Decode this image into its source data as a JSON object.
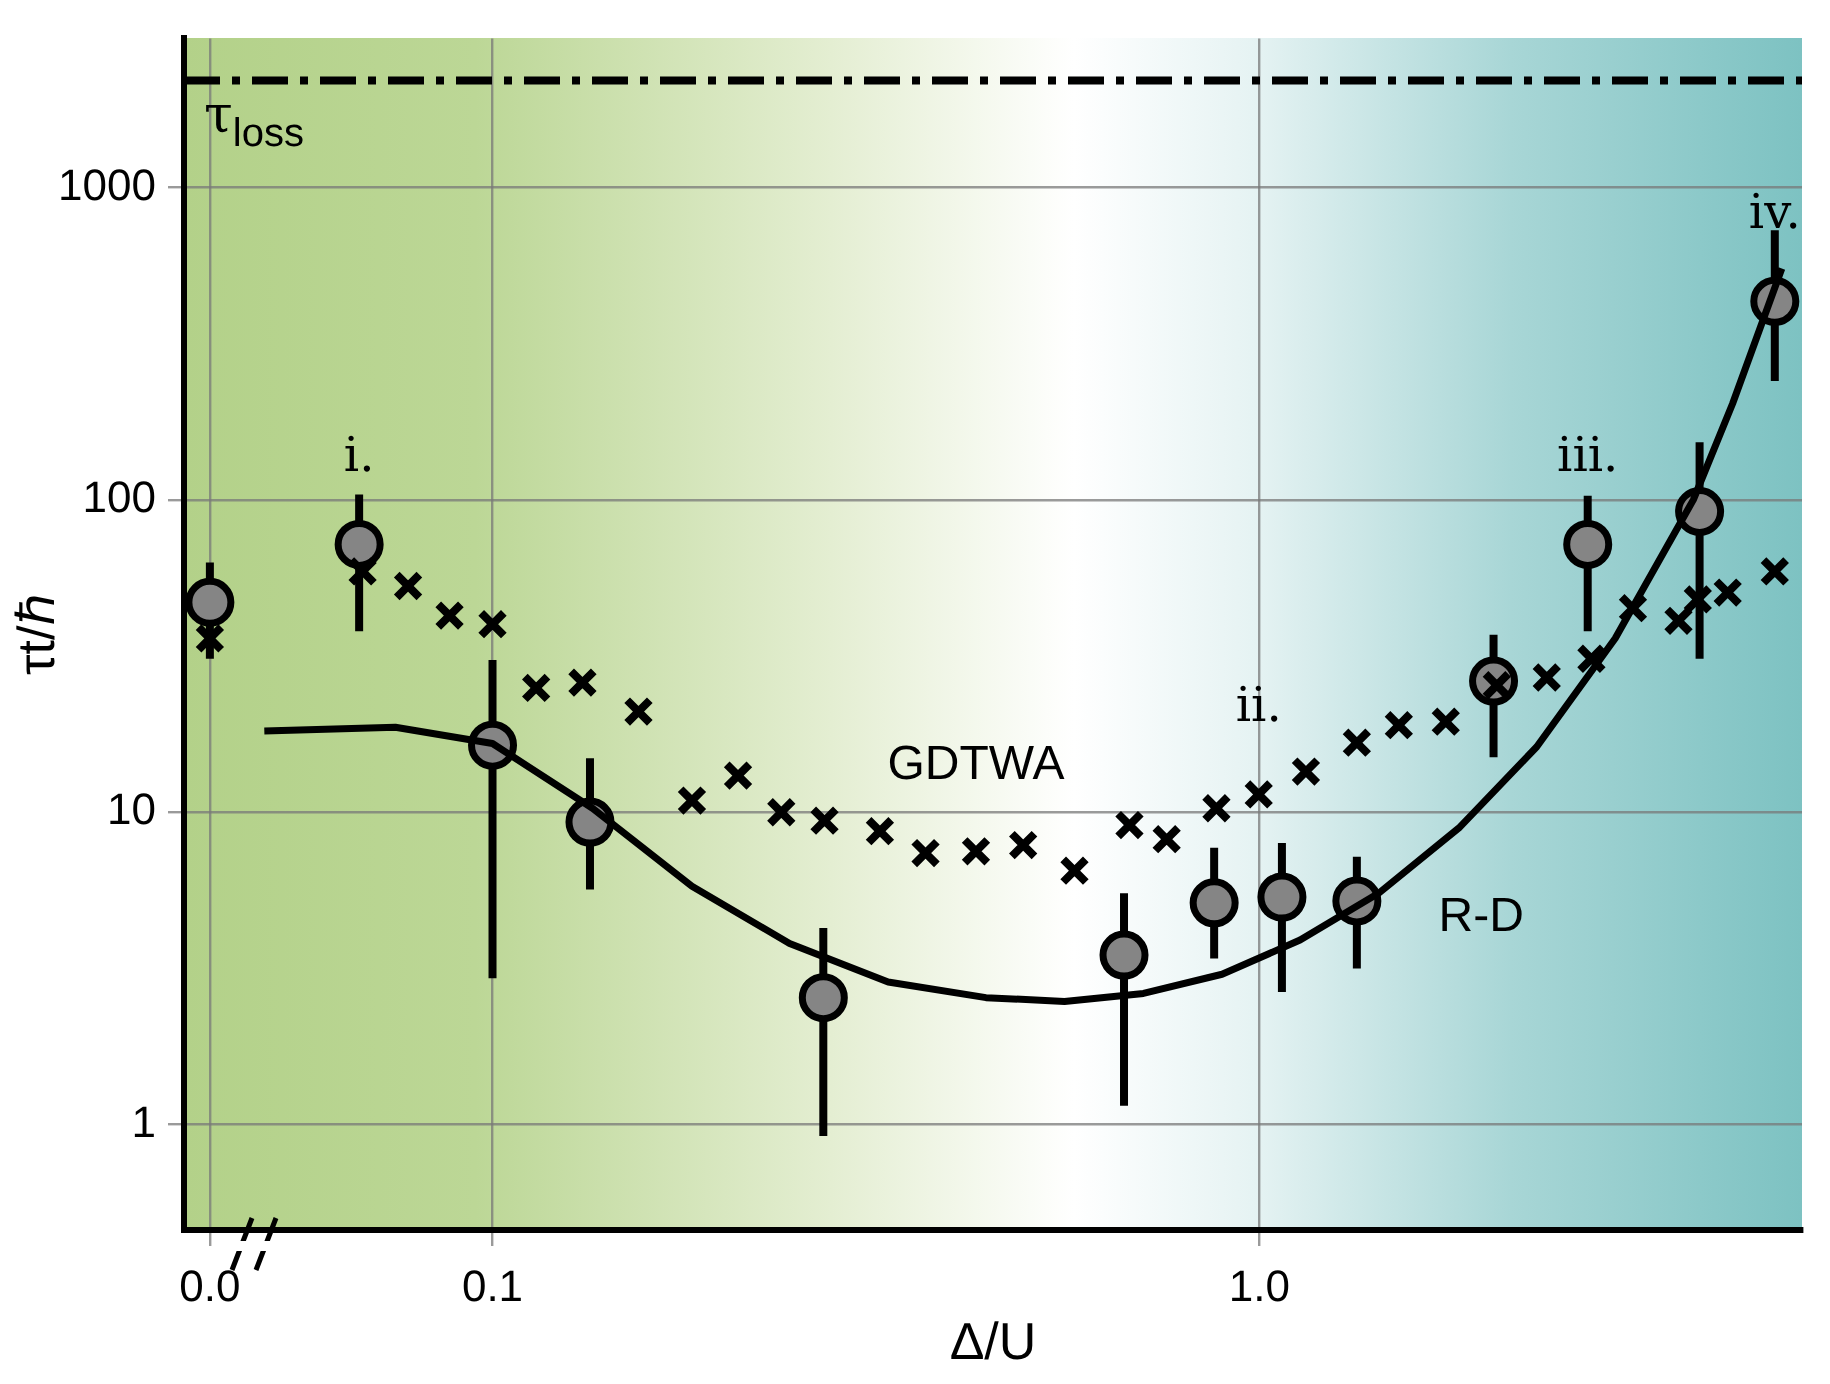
{
  "chart_data": {
    "type": "scatter",
    "xlabel": "Δ/U",
    "ylabel": "τt/ℏ",
    "log": "xy",
    "grid": true,
    "xlim": [
      0.0396,
      5.1
    ],
    "ylim": [
      0.46,
      3000
    ],
    "xticks": [
      {
        "value": 0.0428,
        "label": "0.0"
      },
      0.1,
      {
        "value": 1,
        "label": "1.0"
      }
    ],
    "yticks": [
      1,
      10,
      100,
      1000
    ],
    "ref_lines": [
      {
        "axis": "y",
        "value": 2200,
        "label": "τ$_{loss}$",
        "line_style": "dashed",
        "color": "#000000"
      }
    ],
    "series": [
      {
        "name": "GDTWA",
        "marker": "cross",
        "color": "#000000",
        "x": [
          0.0428,
          0.0677,
          0.0776,
          0.0879,
          0.1,
          0.114,
          0.131,
          0.155,
          0.182,
          0.209,
          0.238,
          0.271,
          0.32,
          0.367,
          0.427,
          0.492,
          0.574,
          0.677,
          0.757,
          0.879,
          0.998,
          1.15,
          1.34,
          1.52,
          1.75,
          2.04,
          2.37,
          2.71,
          3.07,
          3.52,
          3.73,
          4.08,
          4.7
        ],
        "values": [
          36,
          59,
          53,
          42.6,
          40,
          25,
          26,
          21,
          10.9,
          13.1,
          10,
          9.4,
          8.7,
          7.4,
          7.5,
          7.85,
          6.5,
          9.1,
          8.2,
          10.3,
          11.4,
          13.5,
          16.7,
          19,
          19.5,
          25.5,
          27,
          31,
          45,
          41,
          48,
          50.5,
          59
        ]
      },
      {
        "name": "R-D",
        "type": "line",
        "marker": "none",
        "line_style": "solid",
        "color": "#000000",
        "x": [
          0.0504,
          0.0747,
          0.1,
          0.135,
          0.182,
          0.244,
          0.328,
          0.44,
          0.557,
          0.706,
          0.894,
          1.13,
          1.43,
          1.82,
          2.3,
          2.91,
          3.68,
          4.14,
          4.8
        ],
        "values": [
          18.2,
          18.7,
          16.6,
          10.3,
          5.8,
          3.8,
          2.86,
          2.55,
          2.48,
          2.63,
          3.03,
          3.9,
          5.5,
          8.9,
          16.2,
          36,
          100,
          203,
          550
        ]
      },
      {
        "marker": "circle",
        "color": "#858585",
        "x": [
          0.0428,
          0.067,
          0.1,
          0.134,
          0.27,
          0.666,
          0.873,
          1.07,
          1.34,
          2.02,
          2.68,
          3.75,
          4.7
        ],
        "values": [
          47,
          72,
          16.4,
          9.3,
          2.55,
          3.49,
          5.13,
          5.35,
          5.2,
          26.3,
          72,
          91.8,
          432
        ],
        "errors": [
          [
            31,
            63
          ],
          [
            38,
            104
          ],
          [
            2.94,
            30.7
          ],
          [
            5.66,
            14.9
          ],
          [
            0.92,
            4.26
          ],
          [
            1.15,
            5.5
          ],
          [
            3.4,
            7.7
          ],
          [
            2.66,
            7.97
          ],
          [
            3.16,
            7.2
          ],
          [
            15,
            37
          ],
          [
            38,
            103
          ],
          [
            31,
            153
          ],
          [
            240,
            730
          ]
        ]
      }
    ],
    "annotations": [
      {
        "text": "i.",
        "x": 0.067,
        "y": 72
      },
      {
        "text": "ii.",
        "x": 0.998,
        "y": 11.4
      },
      {
        "text": "iii.",
        "x": 2.68,
        "y": 72
      },
      {
        "text": "iv.",
        "x": 4.7,
        "y": 432
      }
    ]
  }
}
